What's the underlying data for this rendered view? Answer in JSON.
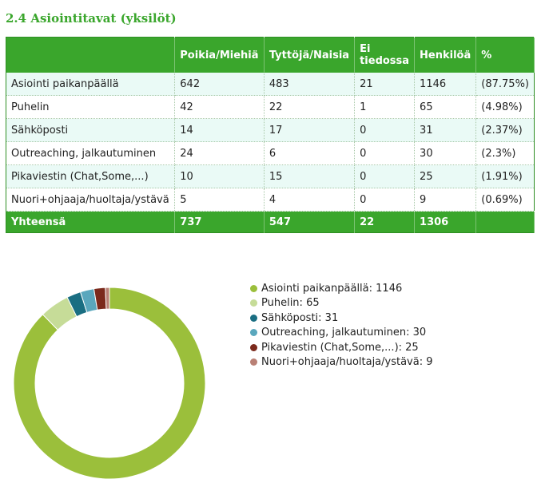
{
  "title": "2.4 Asiointitavat (yksilöt)",
  "table": {
    "headers": [
      "",
      "Poikia/Miehiä",
      "Tyttöjä/Naisia",
      "Ei tiedossa",
      "Henkilöä",
      "%"
    ],
    "rows": [
      [
        "Asiointi paikanpäällä",
        "642",
        "483",
        "21",
        "1146",
        "(87.75%)"
      ],
      [
        "Puhelin",
        "42",
        "22",
        "1",
        "65",
        "(4.98%)"
      ],
      [
        "Sähköposti",
        "14",
        "17",
        "0",
        "31",
        "(2.37%)"
      ],
      [
        "Outreaching, jalkautuminen",
        "24",
        "6",
        "0",
        "30",
        "(2.3%)"
      ],
      [
        "Pikaviestin (Chat,Some,...)",
        "10",
        "15",
        "0",
        "25",
        "(1.91%)"
      ],
      [
        "Nuori+ohjaaja/huoltaja/ystävä",
        "5",
        "4",
        "0",
        "9",
        "(0.69%)"
      ]
    ],
    "total": [
      "Yhteensä",
      "737",
      "547",
      "22",
      "1306",
      ""
    ]
  },
  "chart_data": {
    "type": "pie",
    "style": "donut",
    "categories": [
      "Asiointi paikanpäällä",
      "Puhelin",
      "Sähköposti",
      "Outreaching, jalkautuminen",
      "Pikaviestin (Chat,Some,...)",
      "Nuori+ohjaaja/huoltaja/ystävä"
    ],
    "values": [
      1146,
      65,
      31,
      30,
      25,
      9
    ],
    "colors": [
      "#9bbf3b",
      "#c6dc98",
      "#1a6e82",
      "#5aa7bd",
      "#7b2a1c",
      "#b98075"
    ],
    "legend": [
      {
        "label": "Asiointi paikanpäällä: 1146"
      },
      {
        "label": "Puhelin: 65"
      },
      {
        "label": "Sähköposti: 31"
      },
      {
        "label": "Outreaching, jalkautuminen: 30"
      },
      {
        "label": "Pikaviestin (Chat,Some,...): 25"
      },
      {
        "label": "Nuori+ohjaaja/huoltaja/ystävä: 9"
      }
    ],
    "legend_position": "right"
  }
}
